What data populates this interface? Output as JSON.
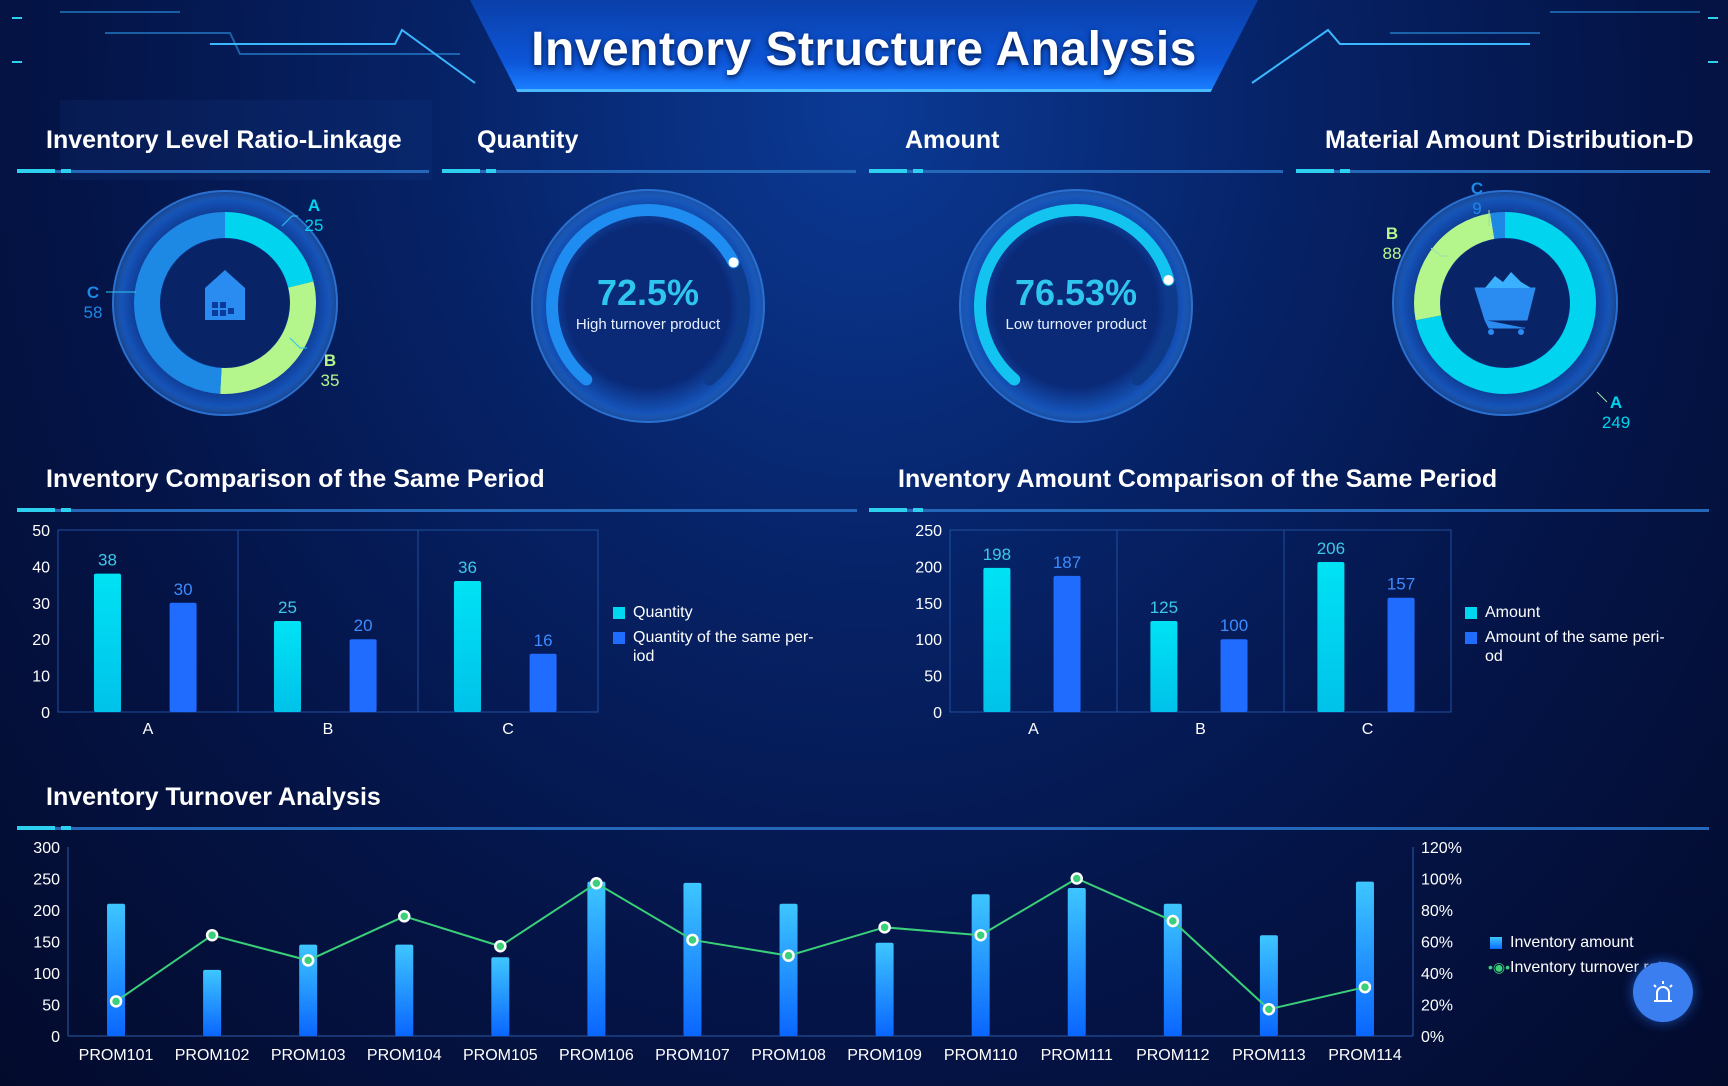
{
  "title": "Inventory Structure Analysis",
  "sections": {
    "level_ratio": "Inventory Level Ratio-Linkage",
    "quantity": "Quantity",
    "amount": "Amount",
    "material": "Material Amount Distribution-D",
    "qty_compare": "Inventory Comparison of the Same Period",
    "amt_compare": "Inventory Amount Comparison of the Same Period",
    "turnover": "Inventory Turnover Analysis"
  },
  "colors": {
    "cyan": "#00d4ee",
    "green": "#b4f58c",
    "blue": "#1e88e5",
    "bar_blue": "#1f6cff",
    "line_green": "#3ad07a"
  },
  "gauges": [
    {
      "value": "72.5%",
      "fraction": 0.725,
      "label": "High turnover product",
      "icon": "none"
    },
    {
      "value": "76.53%",
      "fraction": 0.7653,
      "label": "Low turnover product",
      "icon": "none"
    }
  ],
  "chart_data": [
    {
      "type": "pie",
      "name": "level-ratio-donut",
      "icon": "house-icon",
      "slices": [
        {
          "label": "A",
          "value": 25
        },
        {
          "label": "B",
          "value": 35
        },
        {
          "label": "C",
          "value": 58
        }
      ]
    },
    {
      "type": "pie",
      "name": "material-donut",
      "icon": "cart-icon",
      "slices": [
        {
          "label": "A",
          "value": 249
        },
        {
          "label": "B",
          "value": 88
        },
        {
          "label": "C",
          "value": 9
        }
      ]
    },
    {
      "type": "bar",
      "name": "qty-compare",
      "categories": [
        "A",
        "B",
        "C"
      ],
      "ylim": [
        0,
        50
      ],
      "yticks": [
        "0",
        "10",
        "20",
        "30",
        "40",
        "50"
      ],
      "series": [
        {
          "name": "Quantity",
          "values": [
            38,
            25,
            36
          ]
        },
        {
          "name": "Quantity of the same period",
          "values": [
            30,
            20,
            16
          ]
        }
      ],
      "legend": [
        "Quantity",
        "Quantity of the same per-\niod"
      ]
    },
    {
      "type": "bar",
      "name": "amt-compare",
      "categories": [
        "A",
        "B",
        "C"
      ],
      "ylim": [
        0,
        250
      ],
      "yticks": [
        "0",
        "50",
        "100",
        "150",
        "200",
        "250"
      ],
      "series": [
        {
          "name": "Amount",
          "values": [
            198,
            125,
            206
          ]
        },
        {
          "name": "Amount of the same period",
          "values": [
            187,
            100,
            157
          ]
        }
      ],
      "legend": [
        "Amount",
        "Amount of the same peri-\nod"
      ]
    },
    {
      "type": "bar+line",
      "name": "turnover",
      "categories": [
        "PROM101",
        "PROM102",
        "PROM103",
        "PROM104",
        "PROM105",
        "PROM106",
        "PROM107",
        "PROM108",
        "PROM109",
        "PROM110",
        "PROM111",
        "PROM112",
        "PROM113",
        "PROM114"
      ],
      "ylim": [
        0,
        300
      ],
      "yticks": [
        "0",
        "50",
        "100",
        "150",
        "200",
        "250",
        "300"
      ],
      "y2lim": [
        0,
        120
      ],
      "y2ticks": [
        "0%",
        "20%",
        "40%",
        "60%",
        "80%",
        "100%",
        "120%"
      ],
      "series": [
        {
          "name": "Inventory amount",
          "values": [
            210,
            105,
            145,
            145,
            125,
            245,
            243,
            210,
            148,
            225,
            235,
            210,
            160,
            245
          ]
        },
        {
          "name": "Inventory turnover rate",
          "values": [
            22,
            64,
            48,
            76,
            57,
            97,
            61,
            51,
            69,
            64,
            100,
            73,
            17,
            31
          ]
        }
      ],
      "legend": [
        "Inventory amount",
        "Inventory turnover rate"
      ]
    }
  ]
}
